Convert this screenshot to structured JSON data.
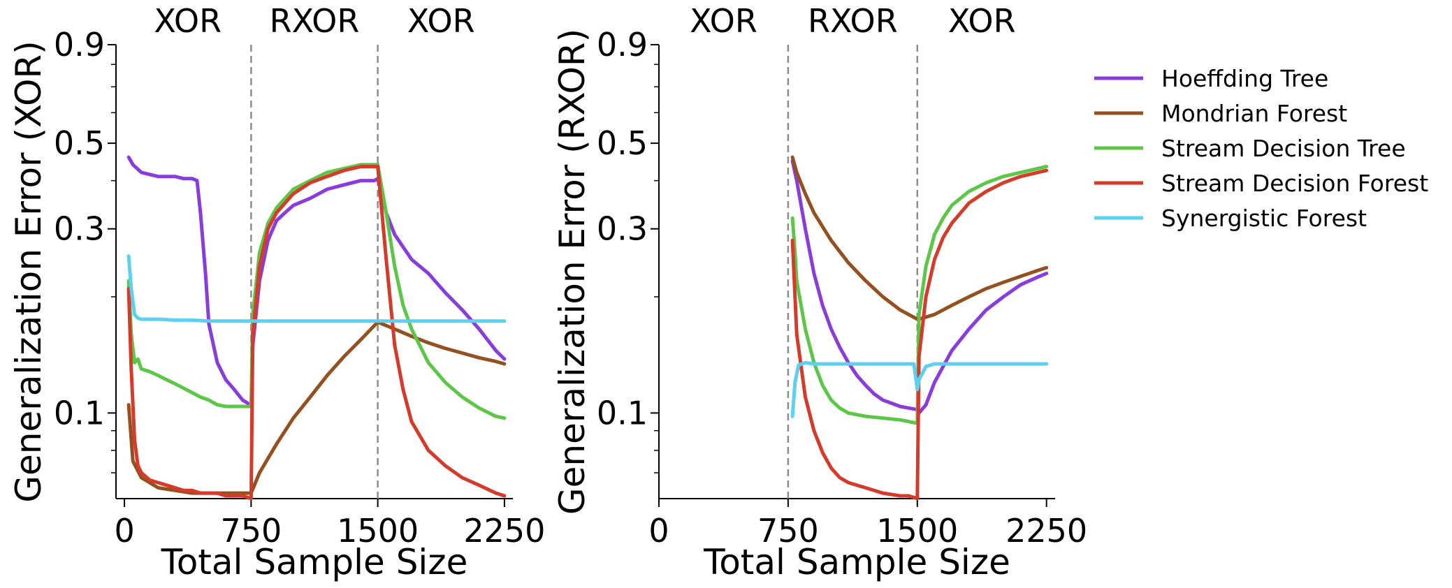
{
  "chart_data": [
    {
      "type": "line",
      "ylabel": "Generalization Error (XOR)",
      "xlabel": "Total Sample Size",
      "xlim": [
        -50,
        2300
      ],
      "ylim": [
        0.06,
        0.9
      ],
      "yscale": "log",
      "xticks": [
        0,
        750,
        1500,
        2250
      ],
      "xtick_labels": [
        "0",
        "750",
        "1500",
        "2250"
      ],
      "yticks": [
        0.1,
        0.3,
        0.5,
        0.9
      ],
      "ytick_labels": [
        "0.1",
        "0.3",
        "0.5",
        "0.9"
      ],
      "phase_lines": [
        750,
        1500
      ],
      "phases": [
        {
          "label": "XOR",
          "x": 375
        },
        {
          "label": "RXOR",
          "x": 1125
        },
        {
          "label": "XOR",
          "x": 1875
        }
      ],
      "grid": false,
      "series": [
        {
          "name": "Hoeffding Tree",
          "color": "#8a3bdc",
          "x": [
            25,
            50,
            100,
            150,
            200,
            250,
            300,
            350,
            400,
            430,
            450,
            480,
            500,
            550,
            600,
            650,
            700,
            730,
            750,
            760,
            800,
            850,
            900,
            950,
            1000,
            1100,
            1200,
            1300,
            1400,
            1480,
            1500,
            1550,
            1600,
            1700,
            1800,
            1900,
            2000,
            2100,
            2200,
            2250
          ],
          "y": [
            0.46,
            0.44,
            0.42,
            0.415,
            0.41,
            0.41,
            0.41,
            0.405,
            0.405,
            0.4,
            0.33,
            0.23,
            0.17,
            0.135,
            0.122,
            0.115,
            0.108,
            0.106,
            0.104,
            0.15,
            0.22,
            0.28,
            0.315,
            0.33,
            0.345,
            0.36,
            0.38,
            0.39,
            0.4,
            0.4,
            0.405,
            0.33,
            0.29,
            0.25,
            0.23,
            0.205,
            0.185,
            0.165,
            0.145,
            0.138
          ]
        },
        {
          "name": "Mondrian Forest",
          "color": "#94501e",
          "x": [
            25,
            50,
            100,
            200,
            300,
            400,
            500,
            600,
            700,
            750,
            800,
            900,
            1000,
            1100,
            1200,
            1300,
            1400,
            1500,
            1600,
            1700,
            1800,
            1900,
            2000,
            2100,
            2200,
            2250
          ],
          "y": [
            0.105,
            0.075,
            0.068,
            0.064,
            0.063,
            0.062,
            0.062,
            0.062,
            0.062,
            0.062,
            0.07,
            0.083,
            0.097,
            0.11,
            0.125,
            0.14,
            0.155,
            0.172,
            0.165,
            0.158,
            0.152,
            0.147,
            0.143,
            0.139,
            0.136,
            0.134
          ]
        },
        {
          "name": "Stream Decision Tree",
          "color": "#5cc747",
          "x": [
            25,
            40,
            60,
            80,
            100,
            150,
            200,
            250,
            300,
            350,
            400,
            450,
            500,
            550,
            600,
            650,
            700,
            750,
            760,
            800,
            850,
            900,
            1000,
            1100,
            1200,
            1300,
            1400,
            1500,
            1550,
            1600,
            1650,
            1700,
            1800,
            1900,
            2000,
            2100,
            2200,
            2250
          ],
          "y": [
            0.22,
            0.16,
            0.135,
            0.138,
            0.13,
            0.128,
            0.125,
            0.122,
            0.119,
            0.116,
            0.113,
            0.11,
            0.108,
            0.105,
            0.104,
            0.104,
            0.104,
            0.104,
            0.18,
            0.26,
            0.31,
            0.34,
            0.38,
            0.4,
            0.42,
            0.43,
            0.44,
            0.44,
            0.33,
            0.24,
            0.19,
            0.165,
            0.135,
            0.12,
            0.11,
            0.103,
            0.098,
            0.097
          ]
        },
        {
          "name": "Stream Decision Forest",
          "color": "#d63a2b",
          "x": [
            25,
            40,
            60,
            80,
            100,
            150,
            200,
            250,
            300,
            350,
            400,
            450,
            500,
            550,
            600,
            650,
            700,
            750,
            760,
            800,
            850,
            900,
            1000,
            1100,
            1200,
            1300,
            1400,
            1500,
            1550,
            1600,
            1650,
            1700,
            1800,
            1900,
            2000,
            2100,
            2200,
            2250
          ],
          "y": [
            0.21,
            0.13,
            0.085,
            0.073,
            0.07,
            0.067,
            0.066,
            0.065,
            0.064,
            0.063,
            0.063,
            0.062,
            0.062,
            0.062,
            0.061,
            0.061,
            0.061,
            0.06,
            0.16,
            0.24,
            0.3,
            0.33,
            0.37,
            0.395,
            0.41,
            0.425,
            0.435,
            0.435,
            0.25,
            0.15,
            0.115,
            0.095,
            0.08,
            0.073,
            0.068,
            0.065,
            0.062,
            0.061
          ]
        },
        {
          "name": "Synergistic Forest",
          "color": "#5bd0f0",
          "x": [
            25,
            40,
            60,
            80,
            100,
            150,
            200,
            300,
            400,
            500,
            600,
            700,
            750,
            800,
            900,
            1000,
            1200,
            1400,
            1500,
            1600,
            1800,
            2000,
            2250
          ],
          "y": [
            0.255,
            0.21,
            0.18,
            0.176,
            0.175,
            0.175,
            0.175,
            0.174,
            0.174,
            0.173,
            0.173,
            0.173,
            0.173,
            0.173,
            0.173,
            0.173,
            0.173,
            0.173,
            0.173,
            0.173,
            0.173,
            0.173,
            0.173
          ]
        }
      ]
    },
    {
      "type": "line",
      "ylabel": "Generalization Error (RXOR)",
      "xlabel": "Total Sample Size",
      "xlim": [
        0,
        2300
      ],
      "ylim": [
        0.06,
        0.9
      ],
      "yscale": "log",
      "xticks": [
        0,
        750,
        1500,
        2250
      ],
      "xtick_labels": [
        "0",
        "750",
        "1500",
        "2250"
      ],
      "yticks": [
        0.1,
        0.3,
        0.5,
        0.9
      ],
      "ytick_labels": [
        "0.1",
        "0.3",
        "0.5",
        "0.9"
      ],
      "phase_lines": [
        750,
        1500
      ],
      "phases": [
        {
          "label": "XOR",
          "x": 375
        },
        {
          "label": "RXOR",
          "x": 1125
        },
        {
          "label": "XOR",
          "x": 1875
        }
      ],
      "grid": false,
      "series": [
        {
          "name": "Hoeffding Tree",
          "color": "#8a3bdc",
          "x": [
            775,
            800,
            850,
            900,
            950,
            1000,
            1050,
            1100,
            1150,
            1200,
            1250,
            1300,
            1350,
            1400,
            1450,
            1500,
            1510,
            1550,
            1600,
            1700,
            1800,
            1900,
            2000,
            2100,
            2200,
            2250
          ],
          "y": [
            0.45,
            0.4,
            0.3,
            0.23,
            0.19,
            0.165,
            0.148,
            0.135,
            0.125,
            0.118,
            0.112,
            0.108,
            0.106,
            0.104,
            0.103,
            0.102,
            0.1,
            0.105,
            0.12,
            0.145,
            0.165,
            0.185,
            0.2,
            0.215,
            0.225,
            0.23
          ]
        },
        {
          "name": "Mondrian Forest",
          "color": "#94501e",
          "x": [
            775,
            800,
            850,
            900,
            1000,
            1100,
            1200,
            1300,
            1400,
            1500,
            1510,
            1600,
            1700,
            1800,
            1900,
            2000,
            2100,
            2200,
            2250
          ],
          "y": [
            0.46,
            0.42,
            0.37,
            0.33,
            0.28,
            0.245,
            0.22,
            0.2,
            0.185,
            0.175,
            0.175,
            0.18,
            0.19,
            0.2,
            0.21,
            0.218,
            0.226,
            0.234,
            0.238
          ]
        },
        {
          "name": "Stream Decision Tree",
          "color": "#5cc747",
          "x": [
            775,
            790,
            800,
            850,
            900,
            950,
            1000,
            1050,
            1100,
            1200,
            1300,
            1400,
            1450,
            1500,
            1510,
            1550,
            1600,
            1650,
            1700,
            1800,
            1900,
            2000,
            2100,
            2200,
            2250
          ],
          "y": [
            0.32,
            0.26,
            0.22,
            0.165,
            0.135,
            0.118,
            0.108,
            0.103,
            0.1,
            0.098,
            0.097,
            0.096,
            0.095,
            0.094,
            0.18,
            0.24,
            0.29,
            0.32,
            0.345,
            0.375,
            0.395,
            0.41,
            0.42,
            0.43,
            0.435
          ]
        },
        {
          "name": "Stream Decision Forest",
          "color": "#d63a2b",
          "x": [
            775,
            790,
            800,
            850,
            900,
            950,
            1000,
            1050,
            1100,
            1200,
            1300,
            1400,
            1450,
            1500,
            1510,
            1550,
            1600,
            1650,
            1700,
            1800,
            1900,
            2000,
            2100,
            2200,
            2250
          ],
          "y": [
            0.28,
            0.2,
            0.16,
            0.11,
            0.09,
            0.079,
            0.072,
            0.068,
            0.066,
            0.064,
            0.062,
            0.061,
            0.061,
            0.06,
            0.14,
            0.2,
            0.25,
            0.285,
            0.31,
            0.35,
            0.375,
            0.395,
            0.41,
            0.42,
            0.425
          ]
        },
        {
          "name": "Synergistic Forest",
          "color": "#5bd0f0",
          "x": [
            775,
            790,
            810,
            850,
            900,
            1000,
            1200,
            1400,
            1480,
            1500,
            1510,
            1550,
            1600,
            1800,
            2000,
            2250
          ],
          "y": [
            0.098,
            0.12,
            0.133,
            0.135,
            0.134,
            0.134,
            0.134,
            0.134,
            0.134,
            0.115,
            0.122,
            0.132,
            0.134,
            0.134,
            0.134,
            0.134
          ]
        }
      ]
    }
  ],
  "legend": {
    "placement": "right",
    "entries": [
      "Hoeffding Tree",
      "Mondrian Forest",
      "Stream Decision Tree",
      "Stream Decision Forest",
      "Synergistic Forest"
    ],
    "colors": [
      "#8a3bdc",
      "#94501e",
      "#5cc747",
      "#d63a2b",
      "#5bd0f0"
    ]
  }
}
